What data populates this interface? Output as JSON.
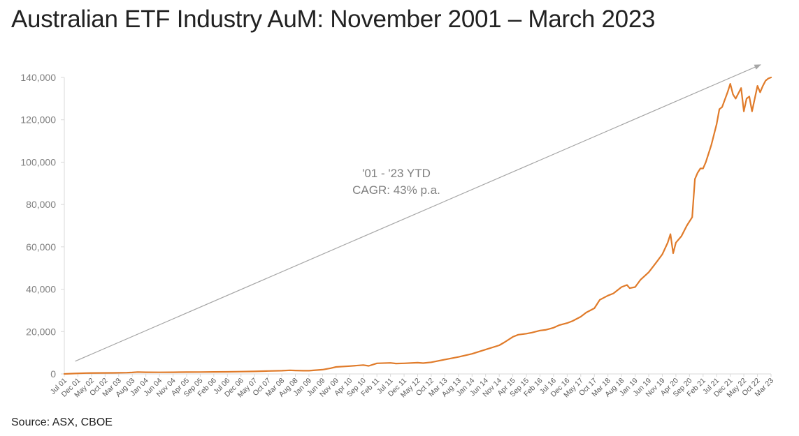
{
  "chart_data": {
    "type": "line",
    "title": "Australian ETF Industry AuM: November 2001 – March 2023",
    "source": "Source: ASX, CBOE",
    "ylim": [
      0,
      140000
    ],
    "y_ticks": [
      "0",
      "20,000",
      "40,000",
      "60,000",
      "80,000",
      "100,000",
      "120,000",
      "140,000"
    ],
    "x_tick_labels": [
      "Jul 01",
      "Dec 01",
      "May 02",
      "Oct 02",
      "Mar 03",
      "Aug 03",
      "Jan 04",
      "Jun 04",
      "Nov 04",
      "Apr 05",
      "Sep 05",
      "Feb 06",
      "Jul 06",
      "Dec 06",
      "May 07",
      "Oct 07",
      "Mar 08",
      "Aug 08",
      "Jan 09",
      "Jun 09",
      "Nov 09",
      "Apr 10",
      "Sep 10",
      "Feb 11",
      "Jul 11",
      "Dec 11",
      "May 12",
      "Oct 12",
      "Mar 13",
      "Aug 13",
      "Jan 14",
      "Jun 14",
      "Nov 14",
      "Apr 15",
      "Sep 15",
      "Feb 16",
      "Jul 16",
      "Dec 16",
      "May 17",
      "Oct 17",
      "Mar 18",
      "Aug 18",
      "Jan 19",
      "Jun 19",
      "Nov 19",
      "Apr 20",
      "Sep 20",
      "Feb 21",
      "Jul 21",
      "Dec 21",
      "May 22",
      "Oct 22",
      "Mar 23"
    ],
    "annotation": {
      "line1": "'01 - '23 YTD",
      "line2": "CAGR: 43% p.a."
    },
    "trend_arrow": {
      "start": [
        "Nov 01",
        6000
      ],
      "end": [
        "Mar 23",
        146000
      ]
    },
    "line_color": "#e07b2a",
    "arrow_color": "#a6a6a6",
    "grid": false,
    "series": [
      {
        "points": [
          [
            "Jul 01",
            0
          ],
          [
            "Nov 01",
            200
          ],
          [
            "Mar 02",
            400
          ],
          [
            "Aug 02",
            450
          ],
          [
            "Jan 03",
            500
          ],
          [
            "Jun 03",
            600
          ],
          [
            "Aug 03",
            700
          ],
          [
            "Oct 03",
            900
          ],
          [
            "Jan 04",
            800
          ],
          [
            "Jun 04",
            750
          ],
          [
            "Nov 04",
            800
          ],
          [
            "Apr 05",
            850
          ],
          [
            "Sep 05",
            900
          ],
          [
            "Feb 06",
            950
          ],
          [
            "Jul 06",
            1000
          ],
          [
            "Dec 06",
            1100
          ],
          [
            "May 07",
            1200
          ],
          [
            "Oct 07",
            1400
          ],
          [
            "Mar 08",
            1500
          ],
          [
            "Jun 08",
            1700
          ],
          [
            "Aug 08",
            1600
          ],
          [
            "Nov 08",
            1500
          ],
          [
            "Jan 09",
            1500
          ],
          [
            "Jun 09",
            2000
          ],
          [
            "Sep 09",
            2700
          ],
          [
            "Nov 09",
            3300
          ],
          [
            "Apr 10",
            3700
          ],
          [
            "Sep 10",
            4200
          ],
          [
            "Nov 10",
            3800
          ],
          [
            "Feb 11",
            5000
          ],
          [
            "Jul 11",
            5200
          ],
          [
            "Sep 11",
            4900
          ],
          [
            "Dec 11",
            5000
          ],
          [
            "May 12",
            5300
          ],
          [
            "Jul 12",
            5100
          ],
          [
            "Oct 12",
            5500
          ],
          [
            "Mar 13",
            6800
          ],
          [
            "Aug 13",
            8000
          ],
          [
            "Jan 14",
            9500
          ],
          [
            "Jun 14",
            11500
          ],
          [
            "Nov 14",
            13500
          ],
          [
            "Jan 15",
            15000
          ],
          [
            "Apr 15",
            17500
          ],
          [
            "Jun 15",
            18500
          ],
          [
            "Sep 15",
            19000
          ],
          [
            "Nov 15",
            19500
          ],
          [
            "Feb 16",
            20500
          ],
          [
            "Apr 16",
            20800
          ],
          [
            "Jul 16",
            21800
          ],
          [
            "Sep 16",
            23000
          ],
          [
            "Dec 16",
            24000
          ],
          [
            "Feb 17",
            25000
          ],
          [
            "May 17",
            27000
          ],
          [
            "Jul 17",
            29000
          ],
          [
            "Oct 17",
            31000
          ],
          [
            "Dec 17",
            35000
          ],
          [
            "Mar 18",
            37000
          ],
          [
            "May 18",
            38000
          ],
          [
            "Aug 18",
            41000
          ],
          [
            "Oct 18",
            42000
          ],
          [
            "Nov 18",
            40500
          ],
          [
            "Jan 19",
            41000
          ],
          [
            "Mar 19",
            44500
          ],
          [
            "Jun 19",
            48000
          ],
          [
            "Sep 19",
            53000
          ],
          [
            "Nov 19",
            56500
          ],
          [
            "Jan 20",
            62000
          ],
          [
            "Feb 20",
            66000
          ],
          [
            "Mar 20",
            57000
          ],
          [
            "Apr 20",
            62000
          ],
          [
            "Jun 20",
            65000
          ],
          [
            "Aug 20",
            70000
          ],
          [
            "Sep 20",
            72000
          ],
          [
            "Oct 20",
            74000
          ],
          [
            "Nov 20",
            92000
          ],
          [
            "Dec 20",
            95000
          ],
          [
            "Jan 21",
            97000
          ],
          [
            "Feb 21",
            97000
          ],
          [
            "Mar 21",
            100000
          ],
          [
            "May 21",
            108000
          ],
          [
            "Jul 21",
            118000
          ],
          [
            "Aug 21",
            125000
          ],
          [
            "Sep 21",
            126000
          ],
          [
            "Nov 21",
            133000
          ],
          [
            "Dec 21",
            137000
          ],
          [
            "Jan 22",
            132000
          ],
          [
            "Feb 22",
            130000
          ],
          [
            "Apr 22",
            135000
          ],
          [
            "May 22",
            124000
          ],
          [
            "Jun 22",
            130000
          ],
          [
            "Jul 22",
            131000
          ],
          [
            "Aug 22",
            124000
          ],
          [
            "Sep 22",
            130000
          ],
          [
            "Oct 22",
            136000
          ],
          [
            "Nov 22",
            133000
          ],
          [
            "Dec 22",
            136000
          ],
          [
            "Jan 23",
            138500
          ],
          [
            "Feb 23",
            139500
          ],
          [
            "Mar 23",
            140000
          ]
        ]
      }
    ]
  }
}
